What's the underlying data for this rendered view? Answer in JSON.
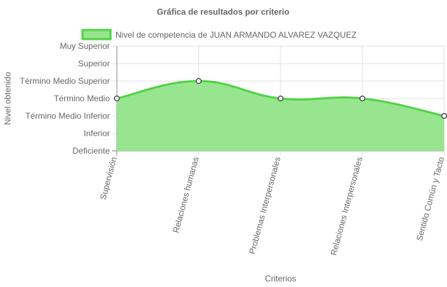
{
  "chart_data": {
    "type": "area",
    "title": "Gráfica de resultados por criterio",
    "xlabel": "Criterios",
    "ylabel": "Nivel obtenido",
    "y_levels": [
      "Deficiente",
      "Inferior",
      "Término Medio Inferior",
      "Término Medio",
      "Término Medio Superior",
      "Superior",
      "Muy Superior"
    ],
    "ylim": [
      0,
      6
    ],
    "categories": [
      "Supervisión",
      "Relaciones humanas",
      "Problemas Interpersonales",
      "Relaciones Interpersonales",
      "Sentido Común y Tacto"
    ],
    "series": [
      {
        "name": "Nivel de competencia de JUAN ARMANDO ALVAREZ VAZQUEZ",
        "values": [
          3,
          4,
          3,
          3,
          2
        ]
      }
    ],
    "legend_position": "top",
    "grid": true,
    "colors": {
      "fill": "#98e590",
      "stroke": "#52d246",
      "grid": "#e0e0e0",
      "axis": "#888888",
      "text": "#666666"
    }
  }
}
